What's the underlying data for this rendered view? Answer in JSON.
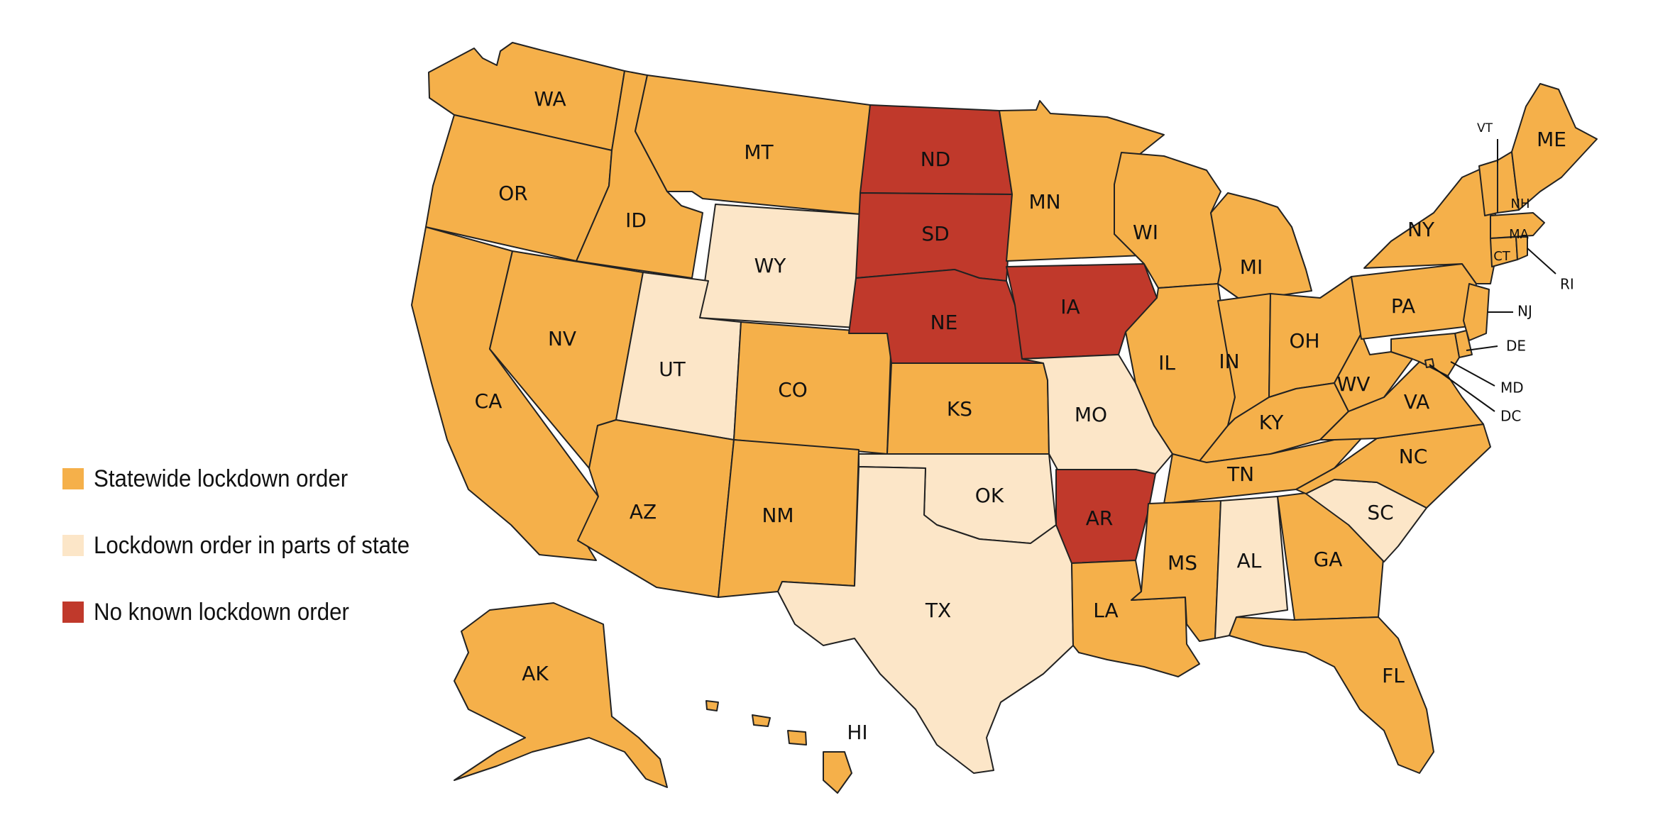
{
  "colors": {
    "statewide": "#F5B04A",
    "partial": "#FCE6C8",
    "none": "#C0392B",
    "border": "#222222"
  },
  "legend": [
    {
      "key": "statewide",
      "label": "Statewide lockdown order"
    },
    {
      "key": "partial",
      "label": "Lockdown order in parts of state"
    },
    {
      "key": "none",
      "label": "No known lockdown order"
    }
  ],
  "states": {
    "WA": {
      "label": "WA",
      "status": "statewide"
    },
    "OR": {
      "label": "OR",
      "status": "statewide"
    },
    "CA": {
      "label": "CA",
      "status": "statewide"
    },
    "ID": {
      "label": "ID",
      "status": "statewide"
    },
    "NV": {
      "label": "NV",
      "status": "statewide"
    },
    "MT": {
      "label": "MT",
      "status": "statewide"
    },
    "WY": {
      "label": "WY",
      "status": "partial"
    },
    "UT": {
      "label": "UT",
      "status": "partial"
    },
    "AZ": {
      "label": "AZ",
      "status": "statewide"
    },
    "CO": {
      "label": "CO",
      "status": "statewide"
    },
    "NM": {
      "label": "NM",
      "status": "statewide"
    },
    "ND": {
      "label": "ND",
      "status": "none"
    },
    "SD": {
      "label": "SD",
      "status": "none"
    },
    "NE": {
      "label": "NE",
      "status": "none"
    },
    "KS": {
      "label": "KS",
      "status": "statewide"
    },
    "OK": {
      "label": "OK",
      "status": "partial"
    },
    "TX": {
      "label": "TX",
      "status": "partial"
    },
    "MN": {
      "label": "MN",
      "status": "statewide"
    },
    "IA": {
      "label": "IA",
      "status": "none"
    },
    "MO": {
      "label": "MO",
      "status": "partial"
    },
    "AR": {
      "label": "AR",
      "status": "none"
    },
    "LA": {
      "label": "LA",
      "status": "statewide"
    },
    "WI": {
      "label": "WI",
      "status": "statewide"
    },
    "IL": {
      "label": "IL",
      "status": "statewide"
    },
    "MI": {
      "label": "MI",
      "status": "statewide"
    },
    "IN": {
      "label": "IN",
      "status": "statewide"
    },
    "OH": {
      "label": "OH",
      "status": "statewide"
    },
    "KY": {
      "label": "KY",
      "status": "statewide"
    },
    "TN": {
      "label": "TN",
      "status": "statewide"
    },
    "MS": {
      "label": "MS",
      "status": "statewide"
    },
    "AL": {
      "label": "AL",
      "status": "partial"
    },
    "GA": {
      "label": "GA",
      "status": "statewide"
    },
    "FL": {
      "label": "FL",
      "status": "statewide"
    },
    "SC": {
      "label": "SC",
      "status": "partial"
    },
    "NC": {
      "label": "NC",
      "status": "statewide"
    },
    "VA": {
      "label": "VA",
      "status": "statewide"
    },
    "WV": {
      "label": "WV",
      "status": "statewide"
    },
    "PA": {
      "label": "PA",
      "status": "statewide"
    },
    "NY": {
      "label": "NY",
      "status": "statewide"
    },
    "VT": {
      "label": "VT",
      "status": "statewide"
    },
    "NH": {
      "label": "NH",
      "status": "statewide"
    },
    "ME": {
      "label": "ME",
      "status": "statewide"
    },
    "MA": {
      "label": "MA",
      "status": "statewide"
    },
    "CT": {
      "label": "CT",
      "status": "statewide"
    },
    "RI": {
      "label": "RI",
      "status": "statewide"
    },
    "NJ": {
      "label": "NJ",
      "status": "statewide"
    },
    "DE": {
      "label": "DE",
      "status": "statewide"
    },
    "MD": {
      "label": "MD",
      "status": "statewide"
    },
    "DC": {
      "label": "DC",
      "status": "statewide"
    },
    "AK": {
      "label": "AK",
      "status": "statewide"
    },
    "HI": {
      "label": "HI",
      "status": "statewide"
    }
  }
}
